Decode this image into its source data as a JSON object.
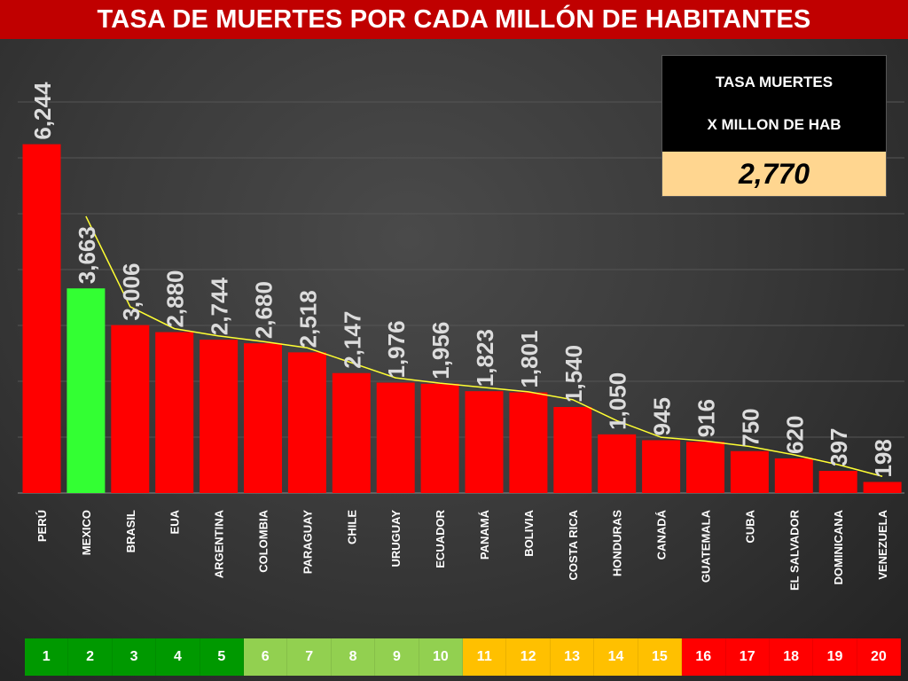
{
  "header": {
    "title": "TASA DE MUERTES POR CADA MILLÓN DE HABITANTES"
  },
  "info_box": {
    "line1": "TASA MUERTES",
    "line2": "X MILLON DE HAB",
    "value": "2,770",
    "value_bg": "#ffd690"
  },
  "chart_data": {
    "type": "bar",
    "title": "TASA DE MUERTES POR CADA MILLÓN DE HABITANTES",
    "categories": [
      "PERÚ",
      "MEXICO",
      "BRASIL",
      "EUA",
      "ARGENTINA",
      "COLOMBIA",
      "PARAGUAY",
      "CHILE",
      "URUGUAY",
      "ECUADOR",
      "PANAMÁ",
      "BOLIVIA",
      "COSTA RICA",
      "HONDURAS",
      "CANADÁ",
      "GUATEMALA",
      "CUBA",
      "EL SALVADOR",
      "DOMINICANA",
      "VENEZUELA"
    ],
    "values": [
      6244,
      3663,
      3006,
      2880,
      2744,
      2680,
      2518,
      2147,
      1976,
      1956,
      1823,
      1801,
      1540,
      1050,
      945,
      916,
      750,
      620,
      397,
      198
    ],
    "data_labels": [
      "6,244",
      "3,663",
      "3,006",
      "2,880",
      "2,744",
      "2,680",
      "2,518",
      "2,147",
      "1,976",
      "1,956",
      "1,823",
      "1,801",
      "1,540",
      "1,050",
      "945",
      "916",
      "750",
      "620",
      "397",
      "198"
    ],
    "highlight_index": 1,
    "bar_color": "#ff0000",
    "highlight_color": "#33ff33",
    "trendline": {
      "type": "2-period moving average",
      "color": "#ffff33"
    },
    "ylim": [
      0,
      7000
    ],
    "grid": true,
    "legend": "none"
  },
  "rank_strip": {
    "items": [
      "1",
      "2",
      "3",
      "4",
      "5",
      "6",
      "7",
      "8",
      "9",
      "10",
      "11",
      "12",
      "13",
      "14",
      "15",
      "16",
      "17",
      "18",
      "19",
      "20"
    ],
    "colors": [
      "#009900",
      "#009900",
      "#009900",
      "#009900",
      "#009900",
      "#92d050",
      "#92d050",
      "#92d050",
      "#92d050",
      "#92d050",
      "#ffc000",
      "#ffc000",
      "#ffc000",
      "#ffc000",
      "#ffc000",
      "#ff0000",
      "#ff0000",
      "#ff0000",
      "#ff0000",
      "#ff0000"
    ]
  }
}
